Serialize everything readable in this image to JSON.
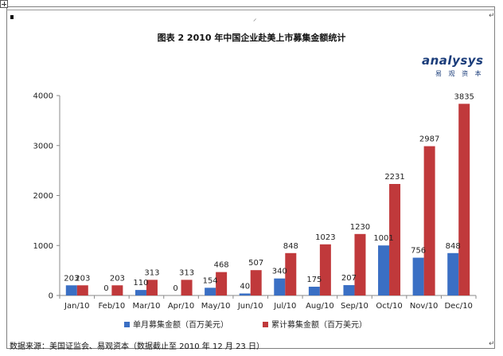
{
  "document": {
    "title": "图表 2 2010 年中国企业赴美上市募集金额统计",
    "source_note": "数据来源：美国证监会、易观资本（数据截止至 2010 年 12 月 23 日）",
    "logo_text": "analysys",
    "logo_subtext": "易 观 资 本"
  },
  "colors": {
    "series_monthly": "#3a6fc4",
    "series_cumulative": "#c0393b",
    "axis": "#888888",
    "text": "#222222"
  },
  "chart_data": {
    "type": "bar",
    "title": "图表 2 2010 年中国企业赴美上市募集金额统计",
    "xlabel": "",
    "ylabel": "",
    "categories": [
      "Jan/10",
      "Feb/10",
      "Mar/10",
      "Apr/10",
      "May/10",
      "Jun/10",
      "Jul/10",
      "Aug/10",
      "Sep/10",
      "Oct/10",
      "Nov/10",
      "Dec/10"
    ],
    "series": [
      {
        "name": "单月募集金额（百万美元）",
        "values": [
          203,
          0,
          110,
          0,
          154,
          40,
          340,
          175,
          207,
          1001,
          756,
          848
        ]
      },
      {
        "name": "累计募集金额（百万美元）",
        "values": [
          203,
          203,
          313,
          313,
          468,
          507,
          848,
          1023,
          1230,
          2231,
          2987,
          3835
        ]
      }
    ],
    "ylim": [
      0,
      4000
    ],
    "yticks": [
      0,
      1000,
      2000,
      3000,
      4000
    ],
    "grid": false,
    "legend": "bottom"
  }
}
